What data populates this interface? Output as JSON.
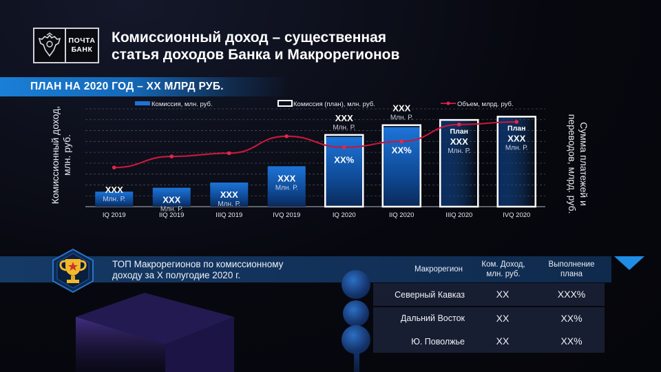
{
  "header": {
    "logo_line1": "ПОЧТА",
    "logo_line2": "БАНК",
    "title_line1": "Комиссионный доход – существенная",
    "title_line2": "статья доходов Банка и Макрорегионов"
  },
  "plan": {
    "text": "ПЛАН НА 2020 ГОД – XX МЛРД РУБ."
  },
  "chart_data": {
    "type": "bar",
    "categories": [
      "IQ 2019",
      "IIQ 2019",
      "IIIQ 2019",
      "IVQ 2019",
      "IQ 2020",
      "IIQ 2020",
      "IIIQ 2020",
      "IVQ 2020"
    ],
    "series": [
      {
        "name": "Комиссия, млн. руб.",
        "kind": "bar",
        "values": [
          23,
          29,
          37,
          62,
          107,
          122,
          133,
          138
        ]
      },
      {
        "name": "Комиссия (план), млн. руб.",
        "kind": "bar-outline",
        "values": [
          null,
          null,
          null,
          null,
          110,
          125,
          133,
          138
        ]
      },
      {
        "name": "Объем, млрд. руб.",
        "kind": "line",
        "values": [
          60,
          77,
          82,
          108,
          91,
          100,
          126,
          130
        ]
      }
    ],
    "bar_labels": [
      {
        "value": "XXX",
        "unit": "Млн. Р."
      },
      {
        "value": "XXX",
        "unit": "Млн. Р."
      },
      {
        "value": "XXX",
        "unit": "Млн. Р."
      },
      {
        "value": "XXX",
        "unit": "Млн. Р."
      },
      {
        "value": "XXX",
        "unit": "Млн. Р.",
        "inside": "XX%"
      },
      {
        "value": "XXX",
        "unit": "Млн. Р.",
        "inside": "XX%"
      },
      {
        "value": "XXX",
        "unit": "Млн. Р.",
        "prefix": "План"
      },
      {
        "value": "XXX",
        "unit": "Млн. Р.",
        "prefix": "План"
      }
    ],
    "ylabel_left": "Комиссионный доход, млн. руб.",
    "ylabel_right": "Сумма платежей и переводов, млрд. руб.",
    "ylim": [
      0,
      150
    ],
    "grid": true,
    "legend": "top",
    "colors": {
      "bar": "#1a6fd0",
      "line": "#c4183c",
      "grid": "#7a7f8c"
    }
  },
  "top_regions": {
    "title_line1": "ТОП Макрорегионов по комиссионному",
    "title_line2": "доходу за X полугодие 2020 г.",
    "columns": [
      "Макрорегион",
      "Ком. Доход, млн. руб.",
      "Выполнение плана"
    ],
    "rows": [
      {
        "region": "Северный Кавказ",
        "income": "XX",
        "plan": "XXX%"
      },
      {
        "region": "Дальний Восток",
        "income": "XX",
        "plan": "XX%"
      },
      {
        "region": "Ю. Поволжье",
        "income": "XX",
        "plan": "XX%"
      }
    ]
  },
  "icons": {
    "logo": "eagle-emblem-icon",
    "badge": "trophy-icon"
  },
  "colors": {
    "accent": "#1f8de6",
    "line": "#c4183c",
    "band": "#153a66"
  }
}
